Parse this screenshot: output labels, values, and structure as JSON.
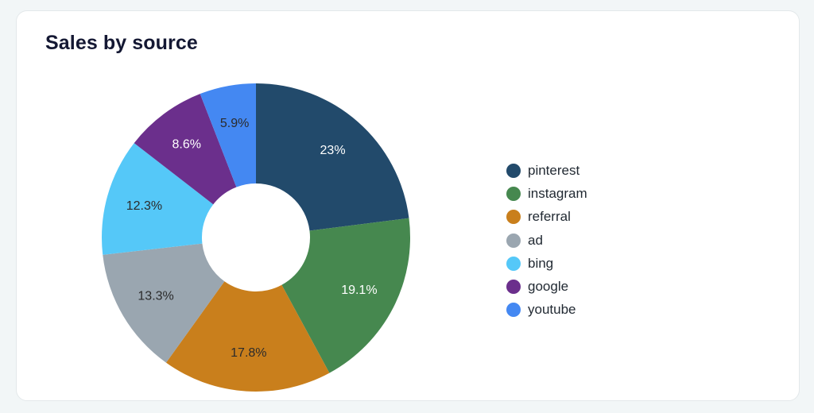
{
  "card": {
    "title": "Sales by source"
  },
  "chart_data": {
    "type": "pie",
    "donut": true,
    "title": "Sales by source",
    "legend_position": "right",
    "labels": [
      "pinterest",
      "instagram",
      "referral",
      "ad",
      "bing",
      "google",
      "youtube"
    ],
    "values": [
      23,
      19.1,
      17.8,
      13.3,
      12.3,
      8.6,
      5.9
    ],
    "value_labels": [
      "23%",
      "19.1%",
      "17.8%",
      "13.3%",
      "12.3%",
      "8.6%",
      "5.9%"
    ],
    "colors": [
      "#224a6b",
      "#46884f",
      "#c97f1c",
      "#9aa6b0",
      "#55c8f8",
      "#6b2f8c",
      "#4488f2"
    ],
    "label_colors": [
      "#ffffff",
      "#ffffff",
      "#2b2b2b",
      "#2b2b2b",
      "#2b2b2b",
      "#ffffff",
      "#2b2b2b"
    ]
  }
}
